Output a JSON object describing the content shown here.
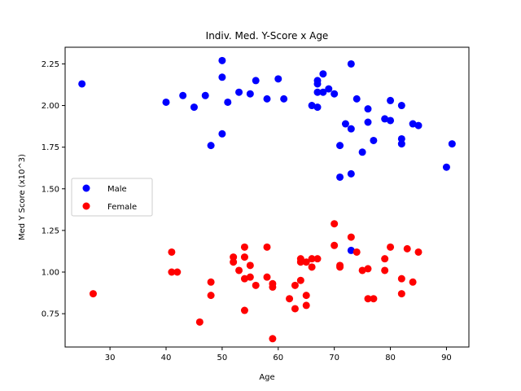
{
  "chart_data": {
    "type": "scatter",
    "title": "Indiv. Med. Y-Score x Age",
    "xlabel": "Age",
    "ylabel": "Med Y Score (x10^3)",
    "xlim": [
      22,
      94
    ],
    "ylim": [
      0.55,
      2.35
    ],
    "xticks": [
      30,
      40,
      50,
      60,
      70,
      80,
      90
    ],
    "yticks": [
      0.75,
      1.0,
      1.25,
      1.5,
      1.75,
      2.0,
      2.25
    ],
    "ytick_labels": [
      "0.75",
      "1.00",
      "1.25",
      "1.50",
      "1.75",
      "2.00",
      "2.25"
    ],
    "grid": false,
    "legend_position": "center-left",
    "series": [
      {
        "name": "Male",
        "color": "#0000ff",
        "points": [
          [
            25,
            2.13
          ],
          [
            40,
            2.02
          ],
          [
            43,
            2.06
          ],
          [
            45,
            1.99
          ],
          [
            47,
            2.06
          ],
          [
            48,
            1.76
          ],
          [
            50,
            2.27
          ],
          [
            50,
            2.17
          ],
          [
            50,
            1.83
          ],
          [
            51,
            2.02
          ],
          [
            53,
            2.08
          ],
          [
            55,
            2.07
          ],
          [
            56,
            2.15
          ],
          [
            58,
            2.04
          ],
          [
            60,
            2.16
          ],
          [
            61,
            2.04
          ],
          [
            66,
            2.0
          ],
          [
            67,
            2.15
          ],
          [
            67,
            2.13
          ],
          [
            67,
            2.08
          ],
          [
            67,
            1.99
          ],
          [
            68,
            2.19
          ],
          [
            68,
            2.08
          ],
          [
            69,
            2.1
          ],
          [
            70,
            2.07
          ],
          [
            71,
            1.76
          ],
          [
            71,
            1.57
          ],
          [
            72,
            1.89
          ],
          [
            73,
            2.25
          ],
          [
            73,
            1.86
          ],
          [
            73,
            1.59
          ],
          [
            73,
            1.13
          ],
          [
            74,
            2.04
          ],
          [
            75,
            1.72
          ],
          [
            76,
            1.98
          ],
          [
            76,
            1.9
          ],
          [
            77,
            1.79
          ],
          [
            79,
            1.92
          ],
          [
            80,
            2.03
          ],
          [
            80,
            1.91
          ],
          [
            82,
            2.0
          ],
          [
            82,
            1.8
          ],
          [
            82,
            1.77
          ],
          [
            84,
            1.89
          ],
          [
            85,
            1.88
          ],
          [
            90,
            1.63
          ],
          [
            91,
            1.77
          ]
        ]
      },
      {
        "name": "Female",
        "color": "#ff0000",
        "points": [
          [
            27,
            0.87
          ],
          [
            41,
            1.12
          ],
          [
            41,
            1.0
          ],
          [
            42,
            1.0
          ],
          [
            46,
            0.7
          ],
          [
            48,
            0.94
          ],
          [
            48,
            0.86
          ],
          [
            52,
            1.09
          ],
          [
            52,
            1.06
          ],
          [
            53,
            1.01
          ],
          [
            54,
            1.15
          ],
          [
            54,
            1.09
          ],
          [
            54,
            0.96
          ],
          [
            54,
            0.77
          ],
          [
            55,
            1.04
          ],
          [
            55,
            0.97
          ],
          [
            56,
            0.92
          ],
          [
            58,
            1.15
          ],
          [
            58,
            0.97
          ],
          [
            59,
            0.93
          ],
          [
            59,
            0.91
          ],
          [
            59,
            0.6
          ],
          [
            62,
            0.84
          ],
          [
            63,
            0.92
          ],
          [
            63,
            0.78
          ],
          [
            64,
            1.08
          ],
          [
            64,
            1.06
          ],
          [
            64,
            0.95
          ],
          [
            65,
            1.06
          ],
          [
            65,
            0.86
          ],
          [
            65,
            0.8
          ],
          [
            66,
            1.08
          ],
          [
            66,
            1.03
          ],
          [
            67,
            1.08
          ],
          [
            70,
            1.29
          ],
          [
            70,
            1.16
          ],
          [
            71,
            1.04
          ],
          [
            71,
            1.03
          ],
          [
            73,
            1.21
          ],
          [
            74,
            1.12
          ],
          [
            75,
            1.01
          ],
          [
            76,
            1.02
          ],
          [
            76,
            0.84
          ],
          [
            77,
            0.84
          ],
          [
            79,
            1.08
          ],
          [
            79,
            1.01
          ],
          [
            80,
            1.15
          ],
          [
            82,
            0.96
          ],
          [
            82,
            0.87
          ],
          [
            83,
            1.14
          ],
          [
            84,
            0.94
          ],
          [
            85,
            1.12
          ]
        ]
      }
    ]
  }
}
